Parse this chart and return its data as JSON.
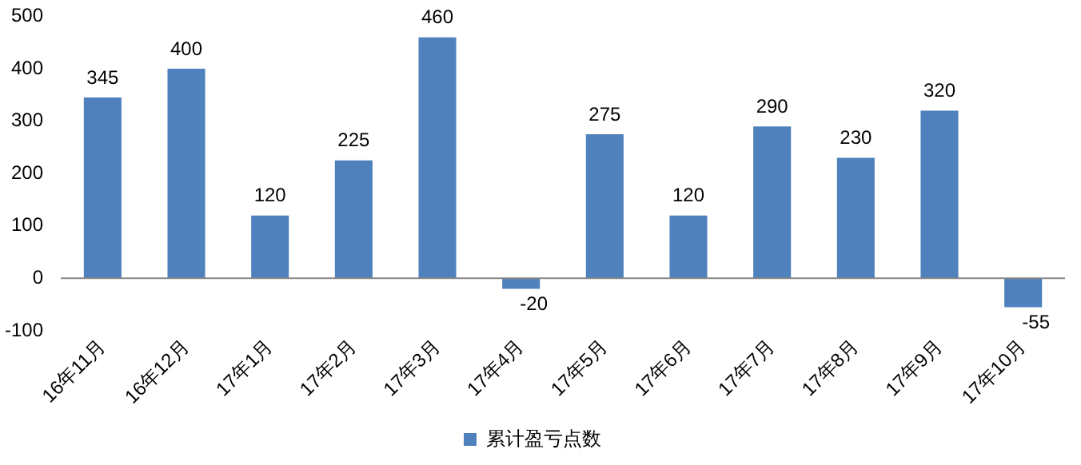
{
  "chart_data": {
    "type": "bar",
    "categories": [
      "16年11月",
      "16年12月",
      "17年1月",
      "17年2月",
      "17年3月",
      "17年4月",
      "17年5月",
      "17年6月",
      "17年7月",
      "17年8月",
      "17年9月",
      "17年10月"
    ],
    "series": [
      {
        "name": "累计盈亏点数",
        "color": "#4f81bd",
        "values": [
          345,
          400,
          120,
          225,
          460,
          -20,
          275,
          120,
          290,
          230,
          320,
          -55
        ]
      }
    ],
    "ylim": [
      -100,
      500
    ],
    "yticks": [
      -100,
      0,
      100,
      200,
      300,
      400,
      500
    ],
    "data_labels": true,
    "legend": "bottom"
  }
}
